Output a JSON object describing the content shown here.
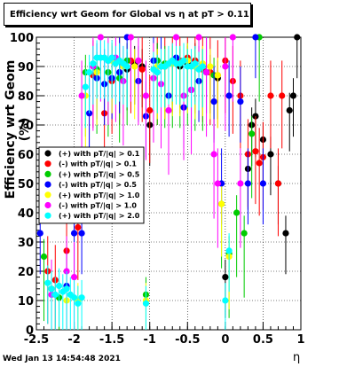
{
  "chart_data": {
    "type": "scatter",
    "title": "Efficiency wrt Geom for Global vs   η at pT > 0.11",
    "xlabel": "η",
    "ylabel": "Efficiency wrt Geom (%)",
    "xlim": [
      -2.5,
      1.0
    ],
    "ylim": [
      0,
      100
    ],
    "xticks": [
      -2.5,
      -2,
      -1.5,
      -1,
      -0.5,
      0,
      0.5,
      1
    ],
    "xtick_labels": [
      "-2.5",
      "-2",
      "-1.5",
      "-1",
      "-0.5",
      "0",
      "0.5",
      "1"
    ],
    "yticks": [
      0,
      10,
      20,
      30,
      40,
      50,
      60,
      70,
      80,
      90,
      100
    ],
    "ytick_labels": [
      "0",
      "10",
      "20",
      "30",
      "40",
      "50",
      "60",
      "70",
      "80",
      "90",
      "100"
    ],
    "grid": true,
    "legend_position": "left-middle",
    "series": [
      {
        "name": "(+) with pT/|q| > 0.1",
        "color": "#000000",
        "points": [
          [
            -1.3,
            89
          ],
          [
            -1.2,
            91
          ],
          [
            -1.1,
            90
          ],
          [
            -1.0,
            70
          ],
          [
            -0.9,
            92
          ],
          [
            -0.8,
            90
          ],
          [
            -0.7,
            91
          ],
          [
            -0.6,
            90
          ],
          [
            -0.5,
            91
          ],
          [
            -0.4,
            92
          ],
          [
            -0.3,
            90
          ],
          [
            -0.2,
            88
          ],
          [
            -0.1,
            86
          ],
          [
            0.0,
            18
          ],
          [
            0.3,
            55
          ],
          [
            0.35,
            70
          ],
          [
            0.4,
            73
          ],
          [
            0.5,
            65
          ],
          [
            0.6,
            60
          ],
          [
            0.7,
            50
          ],
          [
            0.8,
            33
          ],
          [
            0.85,
            75
          ],
          [
            0.9,
            80
          ],
          [
            0.95,
            100
          ]
        ]
      },
      {
        "name": "(-) with pT/|q| > 0.1",
        "color": "#ff0000",
        "points": [
          [
            -2.35,
            20
          ],
          [
            -2.25,
            17
          ],
          [
            -2.1,
            27
          ],
          [
            -1.95,
            35
          ],
          [
            -1.75,
            87
          ],
          [
            -1.6,
            74
          ],
          [
            -1.5,
            85
          ],
          [
            -1.4,
            88
          ],
          [
            -1.25,
            92
          ],
          [
            -1.1,
            89
          ],
          [
            -1.0,
            75
          ],
          [
            -0.9,
            88
          ],
          [
            -0.8,
            90
          ],
          [
            -0.7,
            92
          ],
          [
            -0.6,
            92
          ],
          [
            -0.5,
            93
          ],
          [
            -0.4,
            92
          ],
          [
            -0.3,
            89
          ],
          [
            -0.2,
            88
          ],
          [
            -0.1,
            87
          ],
          [
            0.0,
            92
          ],
          [
            0.1,
            85
          ],
          [
            0.2,
            80
          ],
          [
            0.3,
            60
          ],
          [
            0.4,
            61
          ],
          [
            0.45,
            57
          ],
          [
            0.5,
            59
          ],
          [
            0.6,
            80
          ],
          [
            0.7,
            50
          ],
          [
            0.75,
            80
          ]
        ]
      },
      {
        "name": "(+) with pT/|q| > 0.5",
        "color": "#00cc00",
        "points": [
          [
            -2.4,
            25
          ],
          [
            -2.3,
            14
          ],
          [
            -2.2,
            11
          ],
          [
            -1.85,
            88
          ],
          [
            -1.7,
            89
          ],
          [
            -1.55,
            88
          ],
          [
            -1.4,
            86
          ],
          [
            -1.3,
            92
          ],
          [
            -1.05,
            12
          ],
          [
            -0.9,
            92
          ],
          [
            -0.8,
            91
          ],
          [
            -0.7,
            91
          ],
          [
            -0.6,
            91
          ],
          [
            -0.5,
            92
          ],
          [
            -0.4,
            90
          ],
          [
            -0.3,
            90
          ],
          [
            -0.15,
            87
          ],
          [
            -0.05,
            43
          ],
          [
            0.05,
            26
          ],
          [
            0.15,
            40
          ],
          [
            0.25,
            33
          ],
          [
            0.35,
            67
          ],
          [
            0.45,
            100
          ]
        ]
      },
      {
        "name": "(-) with pT/|q| > 0.5",
        "color": "#0000ff",
        "points": [
          [
            -2.45,
            33
          ],
          [
            -2.1,
            15
          ],
          [
            -2.0,
            33
          ],
          [
            -1.9,
            33
          ],
          [
            -1.8,
            74
          ],
          [
            -1.7,
            86
          ],
          [
            -1.6,
            84
          ],
          [
            -1.5,
            86
          ],
          [
            -1.4,
            88
          ],
          [
            -1.3,
            100
          ],
          [
            -1.15,
            85
          ],
          [
            -1.05,
            73
          ],
          [
            -0.95,
            92
          ],
          [
            -0.85,
            90
          ],
          [
            -0.75,
            80
          ],
          [
            -0.65,
            93
          ],
          [
            -0.55,
            76
          ],
          [
            -0.45,
            82
          ],
          [
            -0.35,
            85
          ],
          [
            -0.25,
            88
          ],
          [
            -0.15,
            78
          ],
          [
            -0.05,
            50
          ],
          [
            0.05,
            80
          ],
          [
            0.2,
            78
          ],
          [
            0.3,
            50
          ],
          [
            0.4,
            100
          ],
          [
            0.5,
            50
          ]
        ]
      },
      {
        "name": "(+) with pT/|q| > 1.0",
        "color": "#ffff00",
        "points": [
          [
            -2.1,
            10
          ],
          [
            -1.95,
            10
          ],
          [
            -1.85,
            80
          ],
          [
            -1.7,
            88
          ],
          [
            -1.5,
            92
          ],
          [
            -1.35,
            90
          ],
          [
            -1.2,
            90
          ],
          [
            -1.05,
            10
          ],
          [
            -0.9,
            90
          ],
          [
            -0.8,
            90
          ],
          [
            -0.7,
            91
          ],
          [
            -0.6,
            91
          ],
          [
            -0.5,
            92
          ],
          [
            -0.4,
            90
          ],
          [
            -0.3,
            91
          ],
          [
            -0.2,
            90
          ],
          [
            -0.1,
            87
          ],
          [
            -0.05,
            43
          ],
          [
            0.05,
            25
          ]
        ]
      },
      {
        "name": "(-) with pT/|q| > 1.0",
        "color": "#ff00ff",
        "points": [
          [
            -2.3,
            12
          ],
          [
            -2.1,
            20
          ],
          [
            -2.0,
            18
          ],
          [
            -1.9,
            80
          ],
          [
            -1.75,
            90
          ],
          [
            -1.65,
            100
          ],
          [
            -1.55,
            92
          ],
          [
            -1.45,
            93
          ],
          [
            -1.35,
            85
          ],
          [
            -1.25,
            100
          ],
          [
            -1.15,
            92
          ],
          [
            -1.05,
            80
          ],
          [
            -0.95,
            86
          ],
          [
            -0.85,
            84
          ],
          [
            -0.75,
            75
          ],
          [
            -0.65,
            100
          ],
          [
            -0.55,
            80
          ],
          [
            -0.45,
            82
          ],
          [
            -0.35,
            100
          ],
          [
            -0.25,
            88
          ],
          [
            -0.15,
            60
          ],
          [
            -0.1,
            50
          ],
          [
            0.0,
            90
          ],
          [
            0.1,
            100
          ],
          [
            0.2,
            50
          ]
        ]
      },
      {
        "name": "(+) with pT/|q| > 2.0",
        "color": "#00ffff",
        "points": [
          [
            -2.35,
            16
          ],
          [
            -2.3,
            14
          ],
          [
            -2.25,
            12
          ],
          [
            -2.2,
            15
          ],
          [
            -2.15,
            13
          ],
          [
            -2.1,
            14
          ],
          [
            -2.05,
            12
          ],
          [
            -2.0,
            11
          ],
          [
            -1.95,
            9
          ],
          [
            -1.9,
            11
          ],
          [
            -1.85,
            83
          ],
          [
            -1.8,
            88
          ],
          [
            -1.75,
            91
          ],
          [
            -1.7,
            93
          ],
          [
            -1.65,
            93
          ],
          [
            -1.6,
            93
          ],
          [
            -1.55,
            92
          ],
          [
            -1.5,
            93
          ],
          [
            -1.45,
            91
          ],
          [
            -1.4,
            92
          ],
          [
            -1.35,
            91
          ],
          [
            -1.3,
            90
          ],
          [
            -1.05,
            9
          ],
          [
            -0.95,
            89
          ],
          [
            -0.9,
            88
          ],
          [
            -0.85,
            90
          ],
          [
            -0.8,
            90
          ],
          [
            -0.75,
            91
          ],
          [
            -0.7,
            92
          ],
          [
            -0.65,
            91
          ],
          [
            -0.6,
            91
          ],
          [
            -0.55,
            92
          ],
          [
            -0.5,
            90
          ],
          [
            -0.45,
            90
          ],
          [
            -0.4,
            91
          ],
          [
            -0.35,
            89
          ],
          [
            -0.3,
            90
          ],
          [
            0.0,
            10
          ],
          [
            0.05,
            27
          ]
        ]
      }
    ]
  },
  "footer": {
    "datestamp": "Wed Jan 13 14:54:48 2021"
  }
}
